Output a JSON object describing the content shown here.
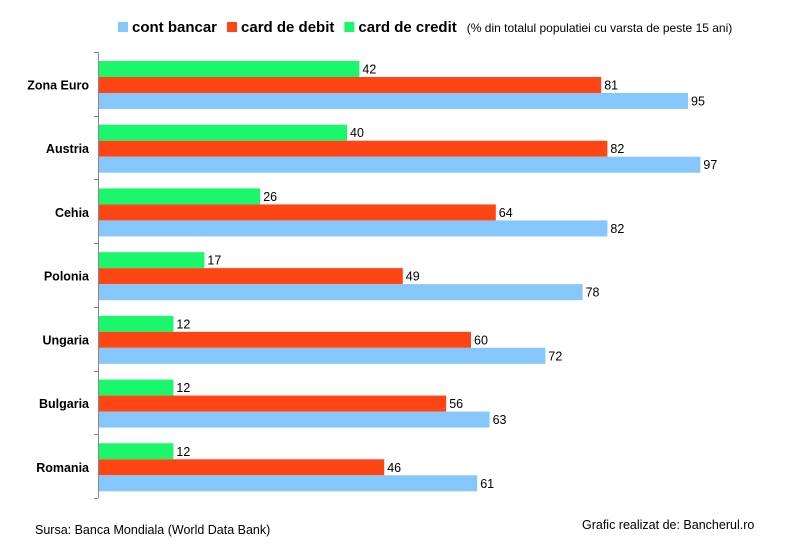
{
  "legend": {
    "items": [
      {
        "label": "cont bancar",
        "color": "#85C6FB"
      },
      {
        "label": "card de debit",
        "color": "#FF4513"
      },
      {
        "label": "card de credit",
        "color": "#1AF76A"
      }
    ],
    "note": "(% din totalul populatiei cu varsta de peste 15 ani)"
  },
  "footer": {
    "source": "Sursa: Banca Mondiala (World Data Bank)",
    "credit": "Grafic  realizat de: Bancherul.ro"
  },
  "chart_data": {
    "type": "bar",
    "orientation": "horizontal",
    "categories": [
      "Zona Euro",
      "Austria",
      "Cehia",
      "Polonia",
      "Ungaria",
      "Bulgaria",
      "Romania"
    ],
    "series": [
      {
        "name": "card de credit",
        "color": "#1AF76A",
        "values": [
          42,
          40,
          26,
          17,
          12,
          12,
          12
        ]
      },
      {
        "name": "card de debit",
        "color": "#FF4513",
        "values": [
          81,
          82,
          64,
          49,
          60,
          56,
          46
        ]
      },
      {
        "name": "cont bancar",
        "color": "#85C6FB",
        "values": [
          95,
          97,
          82,
          78,
          72,
          63,
          61
        ]
      }
    ],
    "xlim": [
      0,
      100
    ],
    "grid": false,
    "legend_position": "top",
    "data_labels": true
  }
}
